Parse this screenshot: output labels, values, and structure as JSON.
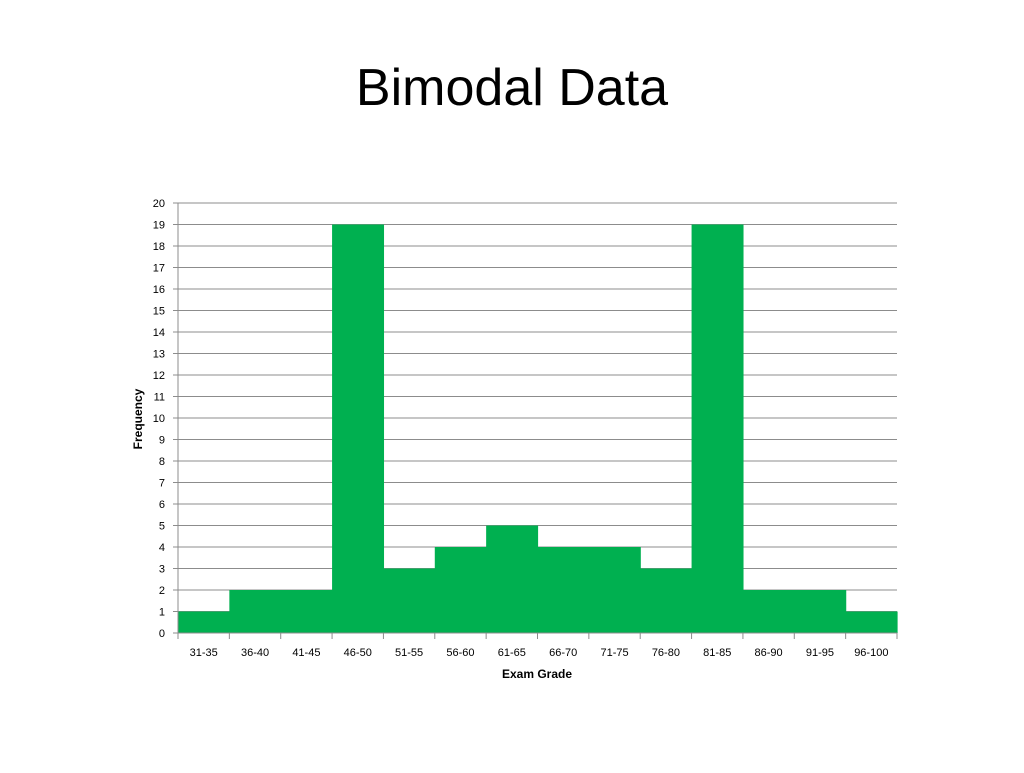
{
  "slide": {
    "title": "Bimodal Data"
  },
  "chart_data": {
    "type": "bar",
    "title": "",
    "xlabel": "Exam Grade",
    "ylabel": "Frequency",
    "ylim": [
      0,
      20
    ],
    "y_ticks": [
      0,
      1,
      2,
      3,
      4,
      5,
      6,
      7,
      8,
      9,
      10,
      11,
      12,
      13,
      14,
      15,
      16,
      17,
      18,
      19,
      20
    ],
    "grid": true,
    "legend": "none",
    "bar_color": "#00b050",
    "categories": [
      "31-35",
      "36-40",
      "41-45",
      "46-50",
      "51-55",
      "56-60",
      "61-65",
      "66-70",
      "71-75",
      "76-80",
      "81-85",
      "86-90",
      "91-95",
      "96-100"
    ],
    "values": [
      1,
      2,
      2,
      19,
      3,
      4,
      5,
      4,
      4,
      3,
      19,
      2,
      2,
      1
    ]
  }
}
